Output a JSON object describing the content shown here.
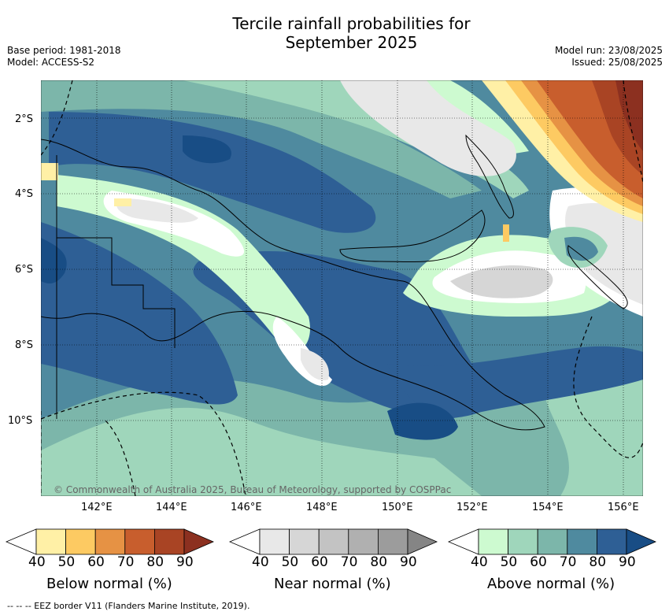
{
  "header": {
    "title_line1": "Tercile rainfall probabilities for",
    "title_line2": "September 2025",
    "base_period": "Base period: 1981-2018",
    "model": "Model: ACCESS-S2",
    "model_run": "Model run: 23/08/2025",
    "issued": "Issued: 25/08/2025"
  },
  "map": {
    "lat_labels": [
      "2°S",
      "4°S",
      "6°S",
      "8°S",
      "10°S"
    ],
    "lon_labels": [
      "142°E",
      "144°E",
      "146°E",
      "148°E",
      "150°E",
      "152°E",
      "154°E",
      "156°E"
    ],
    "copyright": "© Commonwealth of Australia 2025, Bureau of Meteorology, supported by COSPPac"
  },
  "legends": [
    {
      "title": "Below normal (%)",
      "ticks": [
        "40",
        "50",
        "60",
        "70",
        "80",
        "90"
      ],
      "colors": [
        "#ffffff",
        "#fff0a6",
        "#fdca62",
        "#e69244",
        "#c85e2d",
        "#a94424",
        "#8c3020"
      ]
    },
    {
      "title": "Near normal (%)",
      "ticks": [
        "40",
        "50",
        "60",
        "70",
        "80",
        "90"
      ],
      "colors": [
        "#ffffff",
        "#e8e8e8",
        "#d6d6d6",
        "#c3c3c3",
        "#b0b0b0",
        "#9c9c9c",
        "#858585"
      ]
    },
    {
      "title": "Above normal (%)",
      "ticks": [
        "40",
        "50",
        "60",
        "70",
        "80",
        "90"
      ],
      "colors": [
        "#ffffff",
        "#cdfad0",
        "#9fd6bb",
        "#7cb6aa",
        "#4f8a9f",
        "#2e5f95",
        "#184d85"
      ]
    }
  ],
  "footer": {
    "eez_note": "--  --  -- EEZ border V11 (Flanders Marine Institute, 2019)."
  }
}
